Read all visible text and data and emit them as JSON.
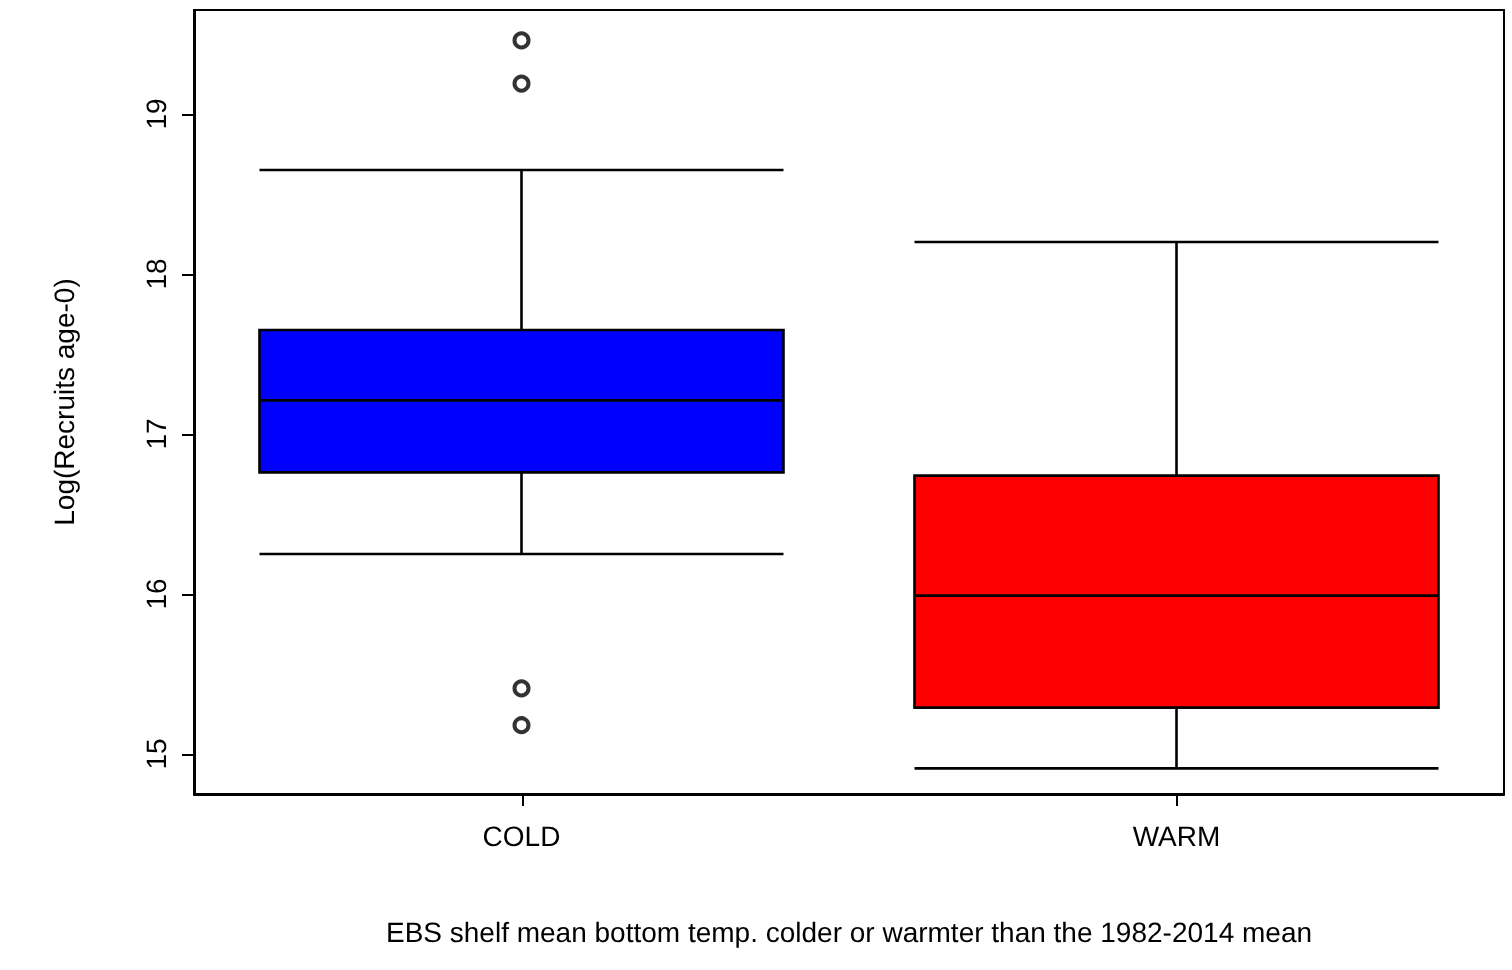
{
  "chart_data": {
    "type": "box",
    "xlabel": "EBS shelf mean bottom temp. colder or warmter than the 1982-2014 mean",
    "ylabel": "Log(Recruits age-0)",
    "categories": [
      "COLD",
      "WARM"
    ],
    "colors": [
      "#0000ff",
      "#ff0000"
    ],
    "boxes": [
      {
        "low": 16.25,
        "q1": 16.76,
        "median": 17.21,
        "q3": 17.65,
        "high": 18.65,
        "outliers": [
          19.46,
          19.19,
          15.41,
          15.18
        ]
      },
      {
        "low": 14.91,
        "q1": 15.29,
        "median": 15.99,
        "q3": 16.74,
        "high": 18.2
      }
    ],
    "ylim": [
      14.75,
      19.65
    ],
    "yticks": [
      15,
      16,
      17,
      18,
      19
    ],
    "grid": false
  }
}
